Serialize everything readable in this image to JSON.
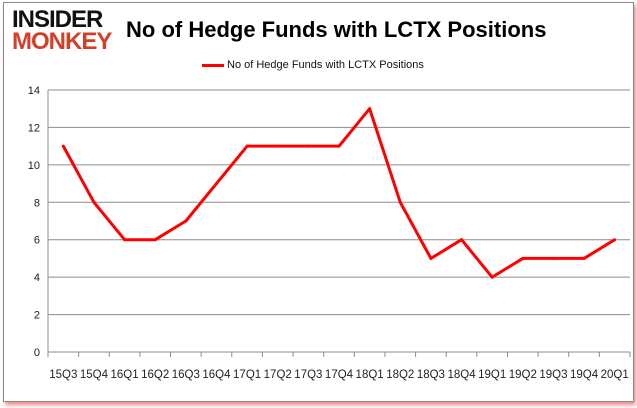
{
  "logo": {
    "line1": "INSIDER",
    "line2": "MONKEY"
  },
  "chart_data": {
    "type": "line",
    "title": "No of Hedge Funds with LCTX Positions",
    "legend": {
      "entries": [
        "No of Hedge Funds with LCTX Positions"
      ],
      "placement": "top"
    },
    "x": [
      "15Q3",
      "15Q4",
      "16Q1",
      "16Q2",
      "16Q3",
      "16Q4",
      "17Q1",
      "17Q2",
      "17Q3",
      "17Q4",
      "18Q1",
      "18Q2",
      "18Q3",
      "18Q4",
      "19Q1",
      "19Q2",
      "19Q3",
      "19Q4",
      "20Q1"
    ],
    "series": [
      {
        "name": "No of Hedge Funds with LCTX Positions",
        "color": "#ff0000",
        "values": [
          11,
          8,
          6,
          6,
          7,
          9,
          11,
          11,
          11,
          11,
          13,
          8,
          5,
          6,
          4,
          5,
          5,
          5,
          6
        ]
      }
    ],
    "ylim": [
      0,
      14
    ],
    "yticks": [
      0,
      2,
      4,
      6,
      8,
      10,
      12,
      14
    ],
    "grid": true,
    "xlabel": "",
    "ylabel": ""
  }
}
